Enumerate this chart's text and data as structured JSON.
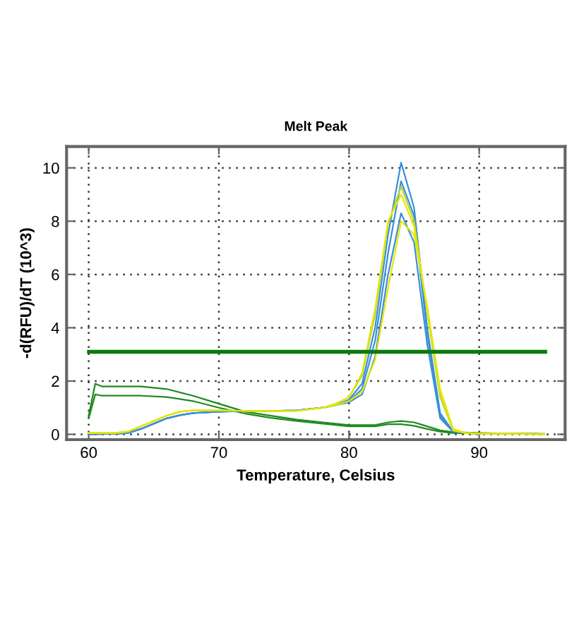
{
  "chart_data": {
    "type": "line",
    "title": "Melt Peak",
    "xlabel": "Temperature, Celsius",
    "ylabel": "-d(RFU)/dT (10^3)",
    "xlim": [
      58.3,
      96.6
    ],
    "ylim": [
      -0.2,
      10.8
    ],
    "xticks": [
      60,
      70,
      80,
      90
    ],
    "yticks": [
      0,
      2,
      4,
      6,
      8,
      10
    ],
    "grid": true,
    "legend": false,
    "marker": "none",
    "line_style": "solid",
    "ref_lines": [
      {
        "axis": "y",
        "value": 3.1,
        "label": null,
        "color": "#0a7a0a"
      }
    ],
    "series": [
      {
        "color": "#1e8a1e",
        "x": [
          60,
          60.5,
          61,
          62,
          64,
          66,
          68,
          70,
          72,
          74,
          76,
          78,
          80,
          82,
          83,
          84,
          85,
          86,
          87,
          88,
          90,
          92,
          95
        ],
        "values": [
          0.7,
          1.9,
          1.8,
          1.8,
          1.8,
          1.7,
          1.45,
          1.15,
          0.85,
          0.7,
          0.55,
          0.45,
          0.35,
          0.35,
          0.45,
          0.5,
          0.45,
          0.3,
          0.15,
          0.08,
          0.05,
          0.03,
          0.02
        ]
      },
      {
        "color": "#1e8a1e",
        "x": [
          60,
          60.5,
          61,
          62,
          64,
          66,
          68,
          70,
          72,
          74,
          76,
          78,
          80,
          82,
          83,
          84,
          85,
          86,
          87,
          88,
          90,
          92,
          95
        ],
        "values": [
          0.6,
          1.5,
          1.45,
          1.45,
          1.45,
          1.4,
          1.25,
          1.0,
          0.78,
          0.62,
          0.5,
          0.4,
          0.3,
          0.3,
          0.38,
          0.38,
          0.32,
          0.2,
          0.1,
          0.05,
          0.03,
          0.02,
          0.01
        ]
      },
      {
        "color": "#3a8fd8",
        "x": [
          60,
          62,
          63,
          64,
          65,
          66,
          67,
          68,
          70,
          72,
          74,
          76,
          78,
          79,
          80,
          81,
          82,
          83,
          84,
          85,
          86,
          87,
          88,
          89,
          90
        ],
        "values": [
          0.0,
          0.02,
          0.05,
          0.2,
          0.4,
          0.6,
          0.72,
          0.8,
          0.85,
          0.88,
          0.88,
          0.9,
          1.0,
          1.1,
          1.3,
          1.9,
          4.0,
          7.5,
          10.2,
          8.5,
          4.0,
          0.8,
          0.1,
          0.05,
          0.03
        ]
      },
      {
        "color": "#3a8fd8",
        "x": [
          60,
          62,
          63,
          64,
          65,
          66,
          67,
          68,
          70,
          72,
          74,
          76,
          78,
          79,
          80,
          81,
          82,
          83,
          84,
          85,
          86,
          87,
          88,
          89,
          90
        ],
        "values": [
          0.0,
          0.02,
          0.05,
          0.2,
          0.4,
          0.6,
          0.72,
          0.8,
          0.85,
          0.88,
          0.88,
          0.9,
          1.0,
          1.1,
          1.25,
          1.7,
          3.5,
          6.8,
          9.5,
          8.2,
          3.8,
          0.7,
          0.1,
          0.05,
          0.03
        ]
      },
      {
        "color": "#3a8fd8",
        "x": [
          60,
          62,
          63,
          64,
          65,
          66,
          67,
          68,
          70,
          72,
          74,
          76,
          78,
          79,
          80,
          81,
          82,
          83,
          84,
          85,
          86,
          87,
          88,
          89,
          90
        ],
        "values": [
          0.0,
          0.02,
          0.05,
          0.2,
          0.4,
          0.6,
          0.72,
          0.8,
          0.85,
          0.88,
          0.88,
          0.9,
          1.0,
          1.1,
          1.2,
          1.5,
          2.9,
          6.0,
          8.3,
          7.2,
          3.4,
          0.6,
          0.1,
          0.05,
          0.03
        ]
      },
      {
        "color": "#b5d334",
        "x": [
          60,
          62,
          63,
          64,
          65,
          66,
          67,
          68,
          70,
          72,
          74,
          76,
          78,
          79,
          80,
          81,
          82,
          83,
          84,
          85,
          86,
          87,
          88,
          89,
          90,
          92,
          95
        ],
        "values": [
          0.05,
          0.05,
          0.1,
          0.3,
          0.5,
          0.7,
          0.85,
          0.9,
          0.9,
          0.88,
          0.87,
          0.88,
          1.0,
          1.15,
          1.4,
          2.2,
          4.5,
          7.9,
          9.3,
          8.0,
          4.6,
          1.4,
          0.15,
          0.05,
          0.03,
          0.02,
          0.01
        ]
      },
      {
        "color": "#e6e600",
        "x": [
          60,
          62,
          63,
          64,
          65,
          66,
          67,
          68,
          70,
          72,
          74,
          76,
          78,
          79,
          80,
          81,
          82,
          83,
          84,
          85,
          86,
          87,
          88,
          89,
          90,
          92,
          95
        ],
        "values": [
          0.05,
          0.05,
          0.1,
          0.3,
          0.5,
          0.7,
          0.85,
          0.9,
          0.9,
          0.88,
          0.87,
          0.88,
          1.0,
          1.15,
          1.4,
          2.3,
          4.7,
          8.0,
          9.0,
          7.8,
          4.7,
          1.6,
          0.15,
          0.05,
          0.03,
          0.02,
          0.01
        ]
      },
      {
        "color": "#e6e600",
        "x": [
          60,
          62,
          63,
          64,
          65,
          66,
          67,
          68,
          70,
          72,
          74,
          76,
          78,
          79,
          80,
          81,
          82,
          83,
          84,
          85,
          86,
          87,
          88,
          89,
          90,
          92,
          95
        ],
        "values": [
          0.05,
          0.05,
          0.1,
          0.3,
          0.5,
          0.7,
          0.85,
          0.9,
          0.9,
          0.88,
          0.87,
          0.88,
          1.0,
          1.1,
          1.25,
          1.6,
          2.8,
          5.5,
          8.0,
          7.5,
          4.8,
          1.7,
          0.2,
          0.05,
          0.03,
          0.02,
          0.01
        ]
      }
    ]
  }
}
